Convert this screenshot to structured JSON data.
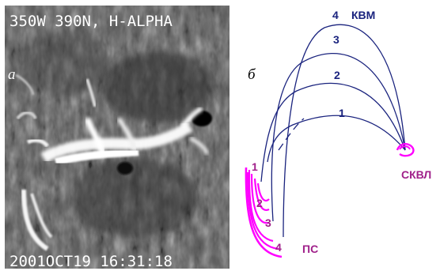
{
  "figure": {
    "panel_a": {
      "letter": "а",
      "header": "350W 390N, H-ALPHA",
      "timestamp": "2001OCT19 16:31:18"
    },
    "panel_b": {
      "letter": "б",
      "big_loop_label": "КВМ",
      "big_loop_numbers": [
        "1",
        "2",
        "3",
        "4"
      ],
      "right_foot_label": "СКВЛ",
      "small_loop_label": "ПС",
      "small_loop_numbers": [
        "1",
        "2",
        "3",
        "4"
      ]
    },
    "colors": {
      "big_loops": "#1a237e",
      "footpoints": "#ff00ff",
      "labels_magenta": "#a0208a",
      "labels_navy": "#1a237e"
    }
  }
}
